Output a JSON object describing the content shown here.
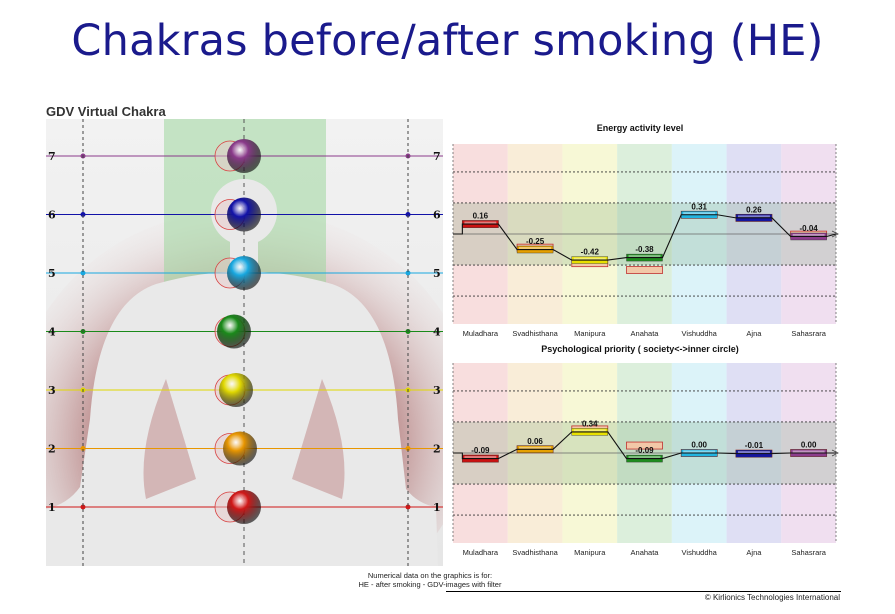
{
  "slide_title": "Chakras before/after smoking (HE)",
  "left_panel": {
    "title": "GDV Virtual Chakra",
    "levels": [
      "1",
      "2",
      "3",
      "4",
      "5",
      "6",
      "7"
    ],
    "colors": {
      "1": "#d01818",
      "2": "#e89600",
      "3": "#e0d800",
      "4": "#1a8a1a",
      "5": "#18a8e0",
      "6": "#1212a8",
      "7": "#8a3a8a"
    },
    "offsets": {
      "1": 0,
      "2": -4,
      "3": -8,
      "4": -10,
      "5": 0,
      "6": 0,
      "7": 0
    }
  },
  "chart_data": [
    {
      "type": "bar",
      "title": "Energy activity level",
      "categories": [
        "Muladhara",
        "Svadhisthana",
        "Manipura",
        "Anahata",
        "Vishuddha",
        "Ajna",
        "Sahasrara"
      ],
      "series": [
        {
          "values": [
            0.16,
            -0.25,
            -0.42,
            -0.38,
            0.31,
            0.26,
            -0.04
          ]
        }
      ],
      "before_values": [
        0.16,
        -0.22,
        -0.47,
        -0.58,
        0.31,
        0.26,
        -0.01
      ],
      "value_labels": [
        "0.16",
        "-0.25",
        "-0.42",
        "-0.38",
        "0.31",
        "0.26",
        "-0.04"
      ],
      "colors": [
        "#cc1111",
        "#e6a000",
        "#e8e000",
        "#1e8c1e",
        "#22b4e0",
        "#1414a0",
        "#8c3c8c"
      ],
      "ylim": [
        -1.45,
        1.45
      ]
    },
    {
      "type": "bar",
      "title": "Psychological priority ( society<->inner circle)",
      "categories": [
        "Muladhara",
        "Svadhisthana",
        "Manipura",
        "Anahata",
        "Vishuddha",
        "Ajna",
        "Sahasrara"
      ],
      "series": [
        {
          "values": [
            -0.09,
            0.06,
            0.34,
            -0.09,
            0.0,
            -0.01,
            0.0
          ]
        }
      ],
      "before_values": [
        -0.09,
        0.06,
        0.38,
        0.12,
        0.0,
        -0.01,
        0.0
      ],
      "value_labels": [
        "-0.09",
        "0.06",
        "0.34",
        "-0.09",
        "0.00",
        "-0.01",
        "0.00"
      ],
      "colors": [
        "#cc1111",
        "#e6a000",
        "#e8e000",
        "#1e8c1e",
        "#22b4e0",
        "#1414a0",
        "#8c3c8c"
      ],
      "ylim": [
        -1.45,
        1.45
      ]
    }
  ],
  "footnote": {
    "line1": "Numerical data on the graphics is for:",
    "line2": "HE - after smoking - GDV-images with filter"
  },
  "copyright": "© Kirlionics Technologies International"
}
